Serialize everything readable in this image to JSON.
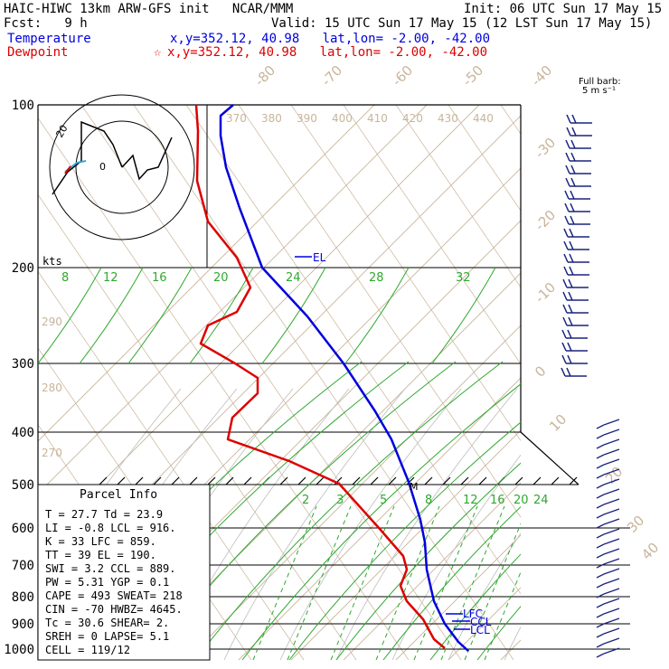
{
  "header": {
    "line1_left": "HAIC-HIWC 13km ARW-GFS init   NCAR/MMM",
    "line1_right": "Init: 06 UTC Sun 17 May 15",
    "line2_left": "Fcst:   9 h",
    "line2_right": "Valid: 15 UTC Sun 17 May 15 (12 LST Sun 17 May 15)",
    "temp_label": "Temperature",
    "temp_loc": "x,y=352.12, 40.98   lat,lon= -2.00, -42.00",
    "dew_label": "Dewpoint",
    "dew_loc": "x,y=352.12, 40.98   lat,lon= -2.00, -42.00",
    "dew_marker": "☆"
  },
  "colors": {
    "temperature": "#0000dd",
    "dewpoint": "#dd0000",
    "isotherm": "#c8b49a",
    "mixing_ratio": "#2fa82f",
    "hodograph": "#000000",
    "barb": "#1a237e"
  },
  "chart_data": {
    "type": "line",
    "title": "HAIC-HIWC 13km ARW-GFS init",
    "pressure_levels": [
      100,
      200,
      300,
      400,
      500,
      600,
      700,
      800,
      900,
      1000
    ],
    "pressure_labels": [
      "100",
      "200",
      "300",
      "400",
      "500",
      "600",
      "700",
      "800",
      "900",
      "1000"
    ],
    "temperature_labels": [
      "-80",
      "-70",
      "-60",
      "-50",
      "-40",
      "-30",
      "-20",
      "-10",
      "0",
      "10",
      "20",
      "30",
      "40"
    ],
    "theta_labels": [
      "370",
      "380",
      "390",
      "400",
      "410",
      "420",
      "430",
      "440"
    ],
    "theta_left_labels": [
      "290",
      "280",
      "270"
    ],
    "mixing_ratio_upper": [
      "8",
      "12",
      "16",
      "20",
      "24",
      "28",
      "32"
    ],
    "mixing_ratio_lower": [
      "2",
      "3",
      "5",
      "8",
      "12",
      "16",
      "20",
      "24"
    ],
    "series": [
      {
        "name": "Temperature",
        "points": [
          [
            100,
            258,
            116
          ],
          [
            110,
            244,
            128
          ],
          [
            130,
            244,
            150
          ],
          [
            160,
            250,
            185
          ],
          [
            180,
            265,
            230
          ],
          [
            200,
            290,
            296
          ],
          [
            240,
            340,
            350
          ],
          [
            300,
            380,
            402
          ],
          [
            350,
            415,
            455
          ],
          [
            400,
            433,
            486
          ],
          [
            480,
            452,
            533
          ],
          [
            550,
            465,
            575
          ],
          [
            600,
            470,
            600
          ],
          [
            700,
            472,
            630
          ],
          [
            800,
            480,
            665
          ],
          [
            900,
            492,
            690
          ],
          [
            950,
            507,
            710
          ],
          [
            1000,
            518,
            720
          ]
        ]
      },
      {
        "name": "Dewpoint",
        "points": [
          [
            100,
            217,
            116
          ],
          [
            110,
            219,
            145
          ],
          [
            130,
            218,
            200
          ],
          [
            160,
            230,
            245
          ],
          [
            180,
            262,
            285
          ],
          [
            200,
            277,
            318
          ],
          [
            240,
            262,
            345
          ],
          [
            260,
            230,
            360
          ],
          [
            280,
            222,
            380
          ],
          [
            300,
            260,
            402
          ],
          [
            320,
            285,
            418
          ],
          [
            350,
            285,
            435
          ],
          [
            370,
            257,
            462
          ],
          [
            400,
            252,
            486
          ],
          [
            450,
            320,
            510
          ],
          [
            500,
            375,
            535
          ],
          [
            560,
            420,
            585
          ],
          [
            600,
            446,
            615
          ],
          [
            650,
            450,
            630
          ],
          [
            700,
            443,
            648
          ],
          [
            800,
            450,
            665
          ],
          [
            850,
            468,
            685
          ],
          [
            900,
            480,
            707
          ],
          [
            1000,
            492,
            717
          ]
        ]
      }
    ],
    "labels": {
      "el": "EL",
      "lfc": "LFC",
      "lcl": "LCL",
      "ccl": "CCL",
      "m": "M"
    },
    "hodograph_ring": "kts",
    "hodograph_marks": [
      "20",
      "0"
    ],
    "barb_header": [
      "Full barb:",
      "5 m s⁻¹"
    ]
  },
  "parcel": {
    "title": "Parcel Info",
    "rows": [
      "T  =   27.7  Td =  23.9",
      "LI =   -0.8  LCL =  916.",
      "K  =     33  LFC =  859.",
      "TT =     39  EL  =  190.",
      "SWI =   3.2  CCL =  889.",
      "PW =   5.31  YGP =   0.1",
      "CAPE =  493  SWEAT= 218",
      "CIN =   -70  HWBZ= 4645.",
      "Tc =   30.6  SHEAR=   2.",
      "SREH =    0  LAPSE=  5.1",
      "CELL = 119/12"
    ]
  }
}
